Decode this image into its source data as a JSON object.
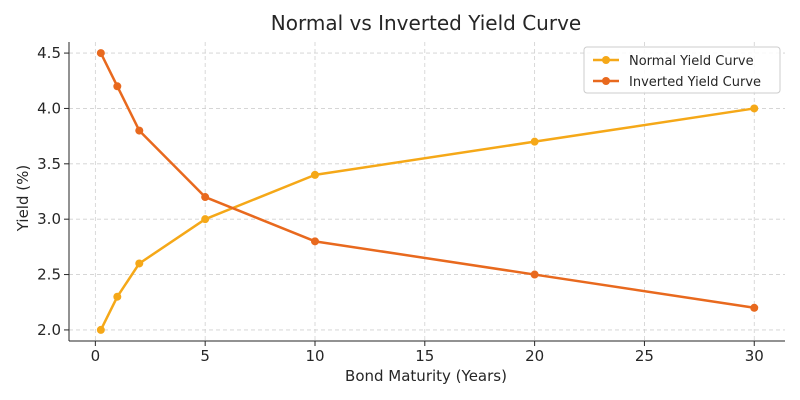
{
  "chart_data": {
    "type": "line",
    "title": "Normal vs Inverted Yield Curve",
    "xlabel": "Bond Maturity (Years)",
    "ylabel": "Yield (%)",
    "xlim": [
      -1.2,
      31.4
    ],
    "ylim": [
      1.9,
      4.6
    ],
    "x_ticks": [
      0,
      5,
      10,
      15,
      20,
      25,
      30
    ],
    "x_tick_labels": [
      "0",
      "5",
      "10",
      "15",
      "20",
      "25",
      "30"
    ],
    "y_ticks": [
      2.0,
      2.5,
      3.0,
      3.5,
      4.0,
      4.5
    ],
    "y_tick_labels": [
      "2.0",
      "2.5",
      "3.0",
      "3.5",
      "4.0",
      "4.5"
    ],
    "grid": true,
    "legend_position": "top-right",
    "x": [
      0.25,
      1,
      2,
      5,
      10,
      20,
      30
    ],
    "series": [
      {
        "name": "Normal Yield Curve",
        "color": "#f5a818",
        "values": [
          2.0,
          2.3,
          2.6,
          3.0,
          3.4,
          3.7,
          4.0
        ]
      },
      {
        "name": "Inverted Yield Curve",
        "color": "#e8691e",
        "values": [
          4.5,
          4.2,
          3.8,
          3.2,
          2.8,
          2.5,
          2.2
        ]
      }
    ]
  }
}
